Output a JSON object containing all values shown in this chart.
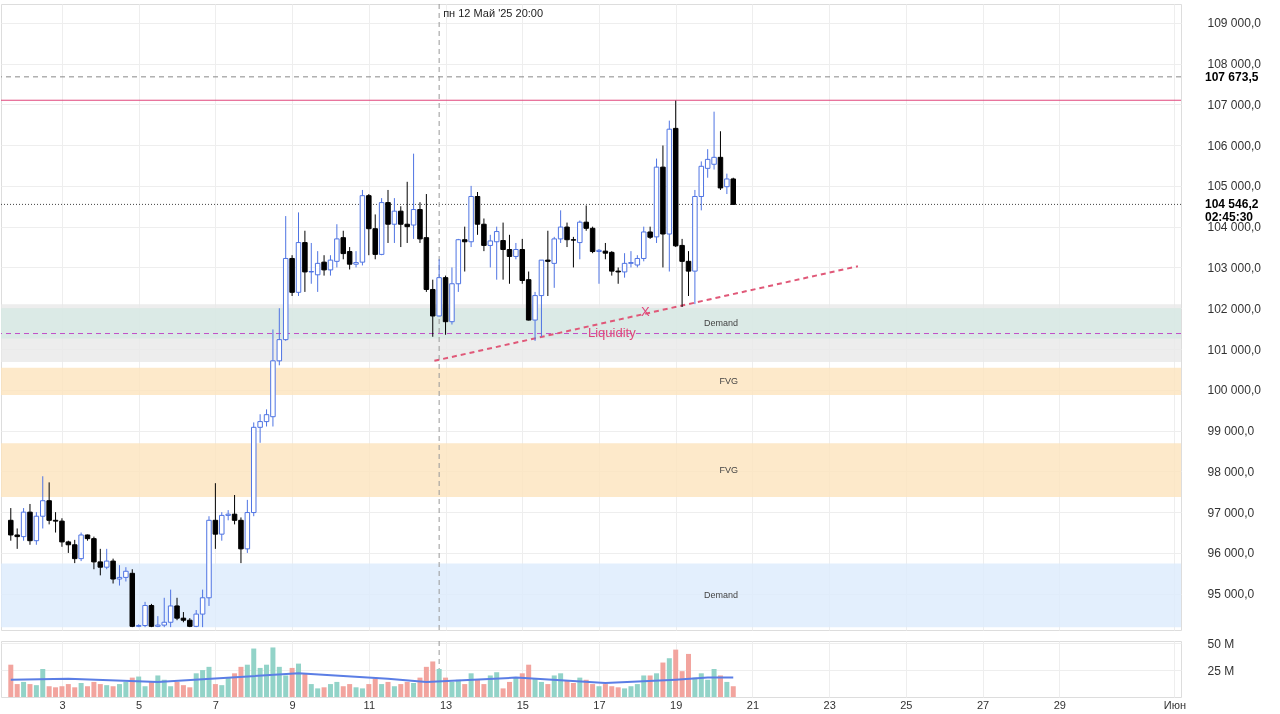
{
  "chart_data": [
    {
      "type": "candlestick",
      "tick_labels": "y",
      "grid": true,
      "colors": [
        "#000000",
        "#000000",
        "#4f74e3",
        "#000000",
        "#4f74e3",
        "#4f74e3",
        "#000000",
        "#000000",
        "#000000",
        "#000000",
        "#000000",
        "#4f74e3",
        "#000000",
        "#000000",
        "#000000",
        "#4f74e3",
        "#000000",
        "#4f74e3",
        "#4f74e3",
        "#000000",
        "#4f74e3",
        "#4f74e3",
        "#000000",
        "#4f74e3",
        "#4f74e3",
        "#4f74e3",
        "#000000",
        "#000000",
        "#000000",
        "#4f74e3",
        "#4f74e3",
        "#4f74e3",
        "#000000",
        "#4f74e3",
        "#4f74e3",
        "#000000",
        "#000000",
        "#4f74e3",
        "#4f74e3",
        "#4f74e3",
        "#4f74e3",
        "#4f74e3",
        "#4f74e3",
        "#4f74e3",
        "#000000",
        "#4f74e3",
        "#000000",
        "#4f74e3",
        "#4f74e3",
        "#000000",
        "#4f74e3",
        "#4f74e3",
        "#000000",
        "#000000",
        "#4f74e3",
        "#4f74e3",
        "#000000",
        "#000000",
        "#4f74e3",
        "#000000",
        "#4f74e3",
        "#000000",
        "#000000",
        "#4f74e3",
        "#000000",
        "#000000",
        "#000000",
        "#4f74e3",
        "#000000",
        "#4f74e3",
        "#4f74e3",
        "#000000",
        "#4f74e3",
        "#000000",
        "#000000",
        "#4f74e3",
        "#4f74e3",
        "#000000",
        "#000000",
        "#4f74e3",
        "#000000",
        "#000000",
        "#4f74e3",
        "#4f74e3",
        "#000000",
        "#4f74e3",
        "#4f74e3",
        "#000000",
        "#000000",
        "#4f74e3",
        "#000000",
        "#000000",
        "#4f74e3",
        "#000000",
        "#000000",
        "#000000",
        "#4f74e3",
        "#4f74e3",
        "#4f74e3",
        "#4f74e3",
        "#000000",
        "#4f74e3",
        "#000000",
        "#4f74e3",
        "#000000",
        "#000000",
        "#000000",
        "#4f74e3",
        "#4f74e3",
        "#4f74e3",
        "#4f74e3",
        "#000000",
        "#4f74e3",
        "#000000"
      ],
      "x": [
        "2025-05-01T16:00",
        "2025-05-01T20:00",
        "2025-05-02T00:00",
        "2025-05-02T04:00",
        "2025-05-02T08:00",
        "2025-05-02T12:00",
        "2025-05-02T16:00",
        "2025-05-02T20:00",
        "2025-05-03T00:00",
        "2025-05-03T04:00",
        "2025-05-03T08:00",
        "2025-05-03T12:00",
        "2025-05-03T16:00",
        "2025-05-03T20:00",
        "2025-05-04T00:00",
        "2025-05-04T04:00",
        "2025-05-04T08:00",
        "2025-05-04T12:00",
        "2025-05-04T16:00",
        "2025-05-04T20:00",
        "2025-05-05T00:00",
        "2025-05-05T04:00",
        "2025-05-05T08:00",
        "2025-05-05T12:00",
        "2025-05-05T16:00",
        "2025-05-05T20:00",
        "2025-05-06T00:00",
        "2025-05-06T04:00",
        "2025-05-06T08:00",
        "2025-05-06T12:00",
        "2025-05-06T16:00",
        "2025-05-06T20:00",
        "2025-05-07T00:00",
        "2025-05-07T04:00",
        "2025-05-07T08:00",
        "2025-05-07T12:00",
        "2025-05-07T16:00",
        "2025-05-07T20:00",
        "2025-05-08T00:00",
        "2025-05-08T04:00",
        "2025-05-08T08:00",
        "2025-05-08T12:00",
        "2025-05-08T16:00",
        "2025-05-08T20:00",
        "2025-05-09T00:00",
        "2025-05-09T04:00",
        "2025-05-09T08:00",
        "2025-05-09T12:00",
        "2025-05-09T16:00",
        "2025-05-09T20:00",
        "2025-05-10T00:00",
        "2025-05-10T04:00",
        "2025-05-10T08:00",
        "2025-05-10T12:00",
        "2025-05-10T16:00",
        "2025-05-10T20:00",
        "2025-05-11T00:00",
        "2025-05-11T04:00",
        "2025-05-11T08:00",
        "2025-05-11T12:00",
        "2025-05-11T16:00",
        "2025-05-11T20:00",
        "2025-05-12T00:00",
        "2025-05-12T04:00",
        "2025-05-12T08:00",
        "2025-05-12T12:00",
        "2025-05-12T16:00",
        "2025-05-12T20:00",
        "2025-05-13T00:00",
        "2025-05-13T04:00",
        "2025-05-13T08:00",
        "2025-05-13T12:00",
        "2025-05-13T16:00",
        "2025-05-13T20:00",
        "2025-05-14T00:00",
        "2025-05-14T04:00",
        "2025-05-14T08:00",
        "2025-05-14T12:00",
        "2025-05-14T16:00",
        "2025-05-14T20:00",
        "2025-05-15T00:00",
        "2025-05-15T04:00",
        "2025-05-15T08:00",
        "2025-05-15T12:00",
        "2025-05-15T16:00",
        "2025-05-15T20:00",
        "2025-05-16T00:00",
        "2025-05-16T04:00",
        "2025-05-16T08:00",
        "2025-05-16T12:00",
        "2025-05-16T16:00",
        "2025-05-16T20:00",
        "2025-05-17T00:00",
        "2025-05-17T04:00",
        "2025-05-17T08:00",
        "2025-05-17T12:00",
        "2025-05-17T16:00",
        "2025-05-17T20:00",
        "2025-05-18T00:00",
        "2025-05-18T04:00",
        "2025-05-18T08:00",
        "2025-05-18T12:00",
        "2025-05-18T16:00",
        "2025-05-18T20:00",
        "2025-05-19T00:00",
        "2025-05-19T04:00",
        "2025-05-19T08:00",
        "2025-05-19T12:00",
        "2025-05-19T16:00",
        "2025-05-19T20:00",
        "2025-05-20T00:00",
        "2025-05-20T04:00",
        "2025-05-20T08:00",
        "2025-05-20T12:00"
      ],
      "ohlc": [
        [
          96800,
          97100,
          96300,
          96440
        ],
        [
          96440,
          96600,
          96100,
          96400
        ],
        [
          96400,
          97100,
          96300,
          97000
        ],
        [
          97000,
          97200,
          96200,
          96300
        ],
        [
          96300,
          97000,
          96200,
          96900
        ],
        [
          96900,
          97880,
          96600,
          97280
        ],
        [
          97280,
          97730,
          96700,
          96800
        ],
        [
          96800,
          97000,
          96500,
          96780
        ],
        [
          96780,
          96850,
          96150,
          96270
        ],
        [
          96270,
          96300,
          96000,
          96200
        ],
        [
          96200,
          96320,
          95750,
          95860
        ],
        [
          95860,
          96500,
          95800,
          96440
        ],
        [
          96440,
          96450,
          96300,
          96350
        ],
        [
          96350,
          96400,
          95600,
          95780
        ],
        [
          95780,
          96100,
          95450,
          95650
        ],
        [
          95650,
          96100,
          95600,
          95800
        ],
        [
          95800,
          95860,
          95250,
          95360
        ],
        [
          95360,
          95700,
          95200,
          95400
        ],
        [
          95400,
          95650,
          95300,
          95550
        ],
        [
          95500,
          95600,
          94180,
          94200
        ],
        [
          94200,
          94250,
          94180,
          94220
        ],
        [
          94220,
          94800,
          94180,
          94710
        ],
        [
          94710,
          94750,
          94180,
          94200
        ],
        [
          94200,
          94450,
          94180,
          94230
        ],
        [
          94230,
          94900,
          94180,
          94300
        ],
        [
          94300,
          95100,
          94180,
          94700
        ],
        [
          94700,
          94900,
          94350,
          94400
        ],
        [
          94400,
          94550,
          94300,
          94350
        ],
        [
          94350,
          94400,
          94180,
          94200
        ],
        [
          94200,
          94600,
          94180,
          94500
        ],
        [
          94500,
          95100,
          94180,
          94900
        ],
        [
          94900,
          96900,
          94700,
          96800
        ],
        [
          96800,
          97710,
          96100,
          96460
        ],
        [
          96460,
          97000,
          96300,
          96920
        ],
        [
          96920,
          97050,
          96800,
          96950
        ],
        [
          96950,
          97420,
          96700,
          96800
        ],
        [
          96800,
          96870,
          95750,
          96100
        ],
        [
          96100,
          97300,
          96000,
          96990
        ],
        [
          96990,
          99200,
          96900,
          99080
        ],
        [
          99080,
          99400,
          98700,
          99220
        ],
        [
          99220,
          99520,
          99100,
          99390
        ],
        [
          99340,
          101480,
          99100,
          100710
        ],
        [
          100710,
          102000,
          100600,
          101230
        ],
        [
          101230,
          104260,
          101200,
          103220
        ],
        [
          103220,
          103300,
          102300,
          102390
        ],
        [
          102390,
          104350,
          102300,
          103610
        ],
        [
          103610,
          103900,
          102400,
          102890
        ],
        [
          102890,
          103600,
          102600,
          102900
        ],
        [
          102820,
          103400,
          102400,
          103100
        ],
        [
          103130,
          103300,
          102800,
          102940
        ],
        [
          102940,
          103300,
          102800,
          103180
        ],
        [
          103150,
          104060,
          103000,
          103700
        ],
        [
          103730,
          103900,
          103200,
          103340
        ],
        [
          103390,
          103500,
          102950,
          103080
        ],
        [
          103080,
          103400,
          103000,
          103120
        ],
        [
          103130,
          104900,
          103050,
          104760
        ],
        [
          104760,
          104800,
          103300,
          103950
        ],
        [
          103950,
          104300,
          103200,
          103320
        ],
        [
          103320,
          104700,
          103300,
          104590
        ],
        [
          104590,
          104900,
          103600,
          104060
        ],
        [
          104060,
          104700,
          103600,
          104380
        ],
        [
          104380,
          104500,
          103500,
          104060
        ],
        [
          104060,
          105100,
          103600,
          104000
        ],
        [
          104040,
          105790,
          103700,
          104420
        ],
        [
          104420,
          104600,
          103600,
          103700
        ],
        [
          103730,
          104800,
          102400,
          102460
        ],
        [
          102460,
          102700,
          101300,
          101810
        ],
        [
          101810,
          103200,
          101800,
          102750
        ],
        [
          102750,
          102800,
          101350,
          101670
        ],
        [
          101670,
          103000,
          101600,
          102600
        ],
        [
          102600,
          103700,
          102400,
          103680
        ],
        [
          103680,
          104000,
          102900,
          103630
        ],
        [
          103630,
          105000,
          103500,
          104740
        ],
        [
          104740,
          104850,
          103800,
          104060
        ],
        [
          104060,
          104200,
          103400,
          103540
        ],
        [
          103540,
          103800,
          103000,
          103650
        ],
        [
          103630,
          104000,
          102700,
          103880
        ],
        [
          103660,
          104100,
          102700,
          103440
        ],
        [
          103440,
          103800,
          102600,
          103270
        ],
        [
          103270,
          103600,
          103200,
          103440
        ],
        [
          103440,
          103700,
          102600,
          102680
        ],
        [
          102700,
          102900,
          101700,
          101710
        ],
        [
          101710,
          102400,
          101200,
          102310
        ],
        [
          102310,
          103180,
          101300,
          103180
        ],
        [
          103180,
          103900,
          102300,
          103150
        ],
        [
          103100,
          103750,
          102500,
          103700
        ],
        [
          103700,
          104400,
          103600,
          103990
        ],
        [
          103990,
          104100,
          103500,
          103680
        ],
        [
          103680,
          103750,
          103000,
          103670
        ],
        [
          103610,
          104150,
          103200,
          104110
        ],
        [
          104110,
          104520,
          103900,
          103960
        ],
        [
          103960,
          104000,
          103350,
          103390
        ],
        [
          103390,
          103450,
          102600,
          103420
        ],
        [
          103400,
          103600,
          103200,
          103350
        ],
        [
          103370,
          103400,
          102800,
          102910
        ],
        [
          102910,
          103000,
          102600,
          102890
        ],
        [
          102890,
          103350,
          102750,
          103100
        ],
        [
          103100,
          103400,
          103000,
          103120
        ],
        [
          103060,
          103300,
          103000,
          103220
        ],
        [
          103220,
          104000,
          103150,
          103870
        ],
        [
          103870,
          104000,
          103700,
          103740
        ],
        [
          103750,
          105670,
          103600,
          105460
        ],
        [
          105460,
          105990,
          103000,
          103820
        ],
        [
          103820,
          106600,
          102900,
          106390
        ],
        [
          106410,
          107090,
          103500,
          103530
        ],
        [
          103540,
          103700,
          102030,
          103150
        ],
        [
          103150,
          103400,
          102300,
          102910
        ],
        [
          102910,
          104900,
          102100,
          104740
        ],
        [
          104740,
          105600,
          104400,
          105480
        ],
        [
          105430,
          105900,
          105200,
          105650
        ],
        [
          105530,
          106820,
          105400,
          105700
        ],
        [
          105700,
          106340,
          104900,
          104950
        ],
        [
          104980,
          105300,
          104800,
          105170
        ],
        [
          105170,
          105200,
          104546.2,
          104546.2
        ]
      ],
      "series": [
        {
          "type": "line",
          "line_style": "dashed",
          "color": "#e05878",
          "x": [
            "2025-05-12T17:00",
            "2025-05-23T18:00"
          ],
          "values": [
            100710,
            103030
          ]
        }
      ],
      "xlim": [
        "2025-05-01T13:00",
        "2025-06-01T01:00"
      ],
      "xticks": [
        {
          "value": "2025-05-03",
          "label": null
        },
        {
          "value": "2025-05-05",
          "label": null
        },
        {
          "value": "2025-05-07",
          "label": null
        },
        {
          "value": "2025-05-09",
          "label": null
        },
        {
          "value": "2025-05-11",
          "label": null
        },
        {
          "value": "2025-05-13",
          "label": null
        },
        {
          "value": "2025-05-15",
          "label": null
        },
        {
          "value": "2025-05-17",
          "label": null
        },
        {
          "value": "2025-05-19",
          "label": null
        },
        {
          "value": "2025-05-21",
          "label": null
        },
        {
          "value": "2025-05-23",
          "label": null
        },
        {
          "value": "2025-05-25",
          "label": null
        },
        {
          "value": "2025-05-27",
          "label": null
        },
        {
          "value": "2025-05-29",
          "label": null
        },
        {
          "value": "2025-06-01",
          "label": null
        }
      ],
      "ylim": [
        94110,
        109460
      ],
      "yticks": [
        {
          "value": 95000,
          "label": "95 000,0"
        },
        {
          "value": 96000,
          "label": "96 000,0"
        },
        {
          "value": 97000,
          "label": "97 000,0"
        },
        {
          "value": 98000,
          "label": "98 000,0"
        },
        {
          "value": 99000,
          "label": "99 000,0"
        },
        {
          "value": 100000,
          "label": "100 000,0"
        },
        {
          "value": 101000,
          "label": "101 000,0"
        },
        {
          "value": 102000,
          "label": "102 000,0"
        },
        {
          "value": 103000,
          "label": "103 000,0"
        },
        {
          "value": 104000,
          "label": "104 000,0"
        },
        {
          "value": 105000,
          "label": "105 000,0"
        },
        {
          "value": 106000,
          "label": "106 000,0"
        },
        {
          "value": 107000,
          "label": "107 000,0"
        },
        {
          "value": 108000,
          "label": "108 000,0"
        },
        {
          "value": 109000,
          "label": "109 000,0"
        }
      ],
      "bands": [
        {
          "axis": "y",
          "from": 94180,
          "to": 95740,
          "label": "Demand",
          "color": "#dcebfc"
        },
        {
          "axis": "y",
          "from": 97370,
          "to": 98690,
          "label": "FVG",
          "color": "#fde3bd"
        },
        {
          "axis": "y",
          "from": 99870,
          "to": 100540,
          "label": "FVG",
          "color": "#fde3bd"
        },
        {
          "axis": "y",
          "from": 100680,
          "to": 102100,
          "label": null,
          "color": "#e8e8e8"
        },
        {
          "axis": "y",
          "from": 101260,
          "to": 102000,
          "label": "Demand",
          "color": "#d6e9e3"
        }
      ],
      "ref_lines": [
        {
          "axis": "y",
          "value": 107673.5,
          "label": "107 673,5",
          "color": "#888888",
          "line_style": "dashed"
        },
        {
          "axis": "y",
          "value": 107100,
          "label": null,
          "color": "#e0457a",
          "line_style": "solid"
        },
        {
          "axis": "y",
          "value": 104546.2,
          "label": "104 546,2",
          "color": "#444444",
          "line_style": "dotted"
        },
        {
          "axis": "y",
          "value": 101380,
          "label": null,
          "color": "#c050c8",
          "line_style": "dashed"
        },
        {
          "axis": "x",
          "value": "2025-05-12T20:00",
          "label": "пн 12 Май '25  20:00",
          "color": "#999999",
          "line_style": "dashed"
        }
      ],
      "annotations": [
        {
          "text": "X",
          "x": "2025-05-18T05:00",
          "y": 101880
        },
        {
          "text": "Liquidity",
          "x": "2025-05-17T08:00",
          "y": 101380
        },
        "02:45:30"
      ]
    },
    {
      "type": "bar",
      "grid": true,
      "x": [
        "2025-05-01T16:00",
        "2025-05-01T20:00",
        "2025-05-02T00:00",
        "2025-05-02T04:00",
        "2025-05-02T08:00",
        "2025-05-02T12:00",
        "2025-05-02T16:00",
        "2025-05-02T20:00",
        "2025-05-03T00:00",
        "2025-05-03T04:00",
        "2025-05-03T08:00",
        "2025-05-03T12:00",
        "2025-05-03T16:00",
        "2025-05-03T20:00",
        "2025-05-04T00:00",
        "2025-05-04T04:00",
        "2025-05-04T08:00",
        "2025-05-04T12:00",
        "2025-05-04T16:00",
        "2025-05-04T20:00",
        "2025-05-05T00:00",
        "2025-05-05T04:00",
        "2025-05-05T08:00",
        "2025-05-05T12:00",
        "2025-05-05T16:00",
        "2025-05-05T20:00",
        "2025-05-06T00:00",
        "2025-05-06T04:00",
        "2025-05-06T08:00",
        "2025-05-06T12:00",
        "2025-05-06T16:00",
        "2025-05-06T20:00",
        "2025-05-07T00:00",
        "2025-05-07T04:00",
        "2025-05-07T08:00",
        "2025-05-07T12:00",
        "2025-05-07T16:00",
        "2025-05-07T20:00",
        "2025-05-08T00:00",
        "2025-05-08T04:00",
        "2025-05-08T08:00",
        "2025-05-08T12:00",
        "2025-05-08T16:00",
        "2025-05-08T20:00",
        "2025-05-09T00:00",
        "2025-05-09T04:00",
        "2025-05-09T08:00",
        "2025-05-09T12:00",
        "2025-05-09T16:00",
        "2025-05-09T20:00",
        "2025-05-10T00:00",
        "2025-05-10T04:00",
        "2025-05-10T08:00",
        "2025-05-10T12:00",
        "2025-05-10T16:00",
        "2025-05-10T20:00",
        "2025-05-11T00:00",
        "2025-05-11T04:00",
        "2025-05-11T08:00",
        "2025-05-11T12:00",
        "2025-05-11T16:00",
        "2025-05-11T20:00",
        "2025-05-12T00:00",
        "2025-05-12T04:00",
        "2025-05-12T08:00",
        "2025-05-12T12:00",
        "2025-05-12T16:00",
        "2025-05-12T20:00",
        "2025-05-13T00:00",
        "2025-05-13T04:00",
        "2025-05-13T08:00",
        "2025-05-13T12:00",
        "2025-05-13T16:00",
        "2025-05-13T20:00",
        "2025-05-14T00:00",
        "2025-05-14T04:00",
        "2025-05-14T08:00",
        "2025-05-14T12:00",
        "2025-05-14T16:00",
        "2025-05-14T20:00",
        "2025-05-15T00:00",
        "2025-05-15T04:00",
        "2025-05-15T08:00",
        "2025-05-15T12:00",
        "2025-05-15T16:00",
        "2025-05-15T20:00",
        "2025-05-16T00:00",
        "2025-05-16T04:00",
        "2025-05-16T08:00",
        "2025-05-16T12:00",
        "2025-05-16T16:00",
        "2025-05-16T20:00",
        "2025-05-17T00:00",
        "2025-05-17T04:00",
        "2025-05-17T08:00",
        "2025-05-17T12:00",
        "2025-05-17T16:00",
        "2025-05-17T20:00",
        "2025-05-18T00:00",
        "2025-05-18T04:00",
        "2025-05-18T08:00",
        "2025-05-18T12:00",
        "2025-05-18T16:00",
        "2025-05-18T20:00",
        "2025-05-19T00:00",
        "2025-05-19T04:00",
        "2025-05-19T08:00",
        "2025-05-19T12:00",
        "2025-05-19T16:00",
        "2025-05-19T20:00",
        "2025-05-20T00:00",
        "2025-05-20T04:00",
        "2025-05-20T08:00",
        "2025-05-20T12:00"
      ],
      "values": [
        30,
        12,
        14,
        12,
        11,
        26,
        10,
        9,
        10,
        12,
        9,
        13,
        10,
        14,
        12,
        11,
        10,
        12,
        14,
        18,
        19,
        10,
        14,
        20,
        16,
        10,
        14,
        11,
        9,
        22,
        25,
        28,
        12,
        11,
        18,
        22,
        28,
        30,
        45,
        27,
        30,
        46,
        28,
        20,
        27,
        31,
        22,
        12,
        8,
        9,
        12,
        14,
        10,
        12,
        9,
        8,
        12,
        17,
        12,
        14,
        10,
        12,
        14,
        13,
        18,
        28,
        33,
        26,
        18,
        14,
        16,
        12,
        22,
        16,
        12,
        20,
        23,
        8,
        14,
        18,
        22,
        30,
        17,
        14,
        12,
        20,
        22,
        15,
        13,
        18,
        16,
        12,
        10,
        12,
        10,
        9,
        8,
        10,
        12,
        20,
        20,
        22,
        32,
        36,
        44,
        24,
        40,
        18,
        22,
        16,
        26,
        20,
        14,
        10
      ],
      "colors": [
        "#f2a49e",
        "#f2a49e",
        "#92d3c8",
        "#f2a49e",
        "#92d3c8",
        "#92d3c8",
        "#f2a49e",
        "#f2a49e",
        "#f2a49e",
        "#f2a49e",
        "#f2a49e",
        "#92d3c8",
        "#f2a49e",
        "#f2a49e",
        "#f2a49e",
        "#92d3c8",
        "#f2a49e",
        "#92d3c8",
        "#92d3c8",
        "#f2a49e",
        "#92d3c8",
        "#92d3c8",
        "#f2a49e",
        "#92d3c8",
        "#92d3c8",
        "#92d3c8",
        "#f2a49e",
        "#f2a49e",
        "#f2a49e",
        "#92d3c8",
        "#92d3c8",
        "#92d3c8",
        "#f2a49e",
        "#92d3c8",
        "#92d3c8",
        "#f2a49e",
        "#f2a49e",
        "#92d3c8",
        "#92d3c8",
        "#92d3c8",
        "#92d3c8",
        "#92d3c8",
        "#92d3c8",
        "#92d3c8",
        "#f2a49e",
        "#92d3c8",
        "#f2a49e",
        "#92d3c8",
        "#92d3c8",
        "#f2a49e",
        "#92d3c8",
        "#92d3c8",
        "#f2a49e",
        "#f2a49e",
        "#92d3c8",
        "#92d3c8",
        "#f2a49e",
        "#f2a49e",
        "#92d3c8",
        "#f2a49e",
        "#92d3c8",
        "#f2a49e",
        "#f2a49e",
        "#92d3c8",
        "#f2a49e",
        "#f2a49e",
        "#f2a49e",
        "#92d3c8",
        "#f2a49e",
        "#92d3c8",
        "#92d3c8",
        "#f2a49e",
        "#92d3c8",
        "#f2a49e",
        "#f2a49e",
        "#92d3c8",
        "#92d3c8",
        "#f2a49e",
        "#f2a49e",
        "#92d3c8",
        "#f2a49e",
        "#f2a49e",
        "#92d3c8",
        "#92d3c8",
        "#f2a49e",
        "#92d3c8",
        "#92d3c8",
        "#f2a49e",
        "#f2a49e",
        "#92d3c8",
        "#f2a49e",
        "#f2a49e",
        "#92d3c8",
        "#f2a49e",
        "#f2a49e",
        "#f2a49e",
        "#92d3c8",
        "#92d3c8",
        "#92d3c8",
        "#92d3c8",
        "#f2a49e",
        "#92d3c8",
        "#f2a49e",
        "#92d3c8",
        "#f2a49e",
        "#f2a49e",
        "#f2a49e",
        "#92d3c8",
        "#92d3c8",
        "#92d3c8",
        "#92d3c8",
        "#f2a49e",
        "#92d3c8",
        "#f2a49e"
      ],
      "series": [
        {
          "type": "line",
          "color": "#5b7ee5",
          "x": [
            "2025-05-01T16:00",
            "2025-05-03T04:00",
            "2025-05-05T12:00",
            "2025-05-09T04:00",
            "2025-05-11T12:00",
            "2025-05-12T12:00",
            "2025-05-14T20:00",
            "2025-05-17T04:00",
            "2025-05-19T00:00",
            "2025-05-19T20:00",
            "2025-05-20T12:00"
          ],
          "values": [
            16,
            17,
            14,
            22,
            17,
            14,
            18,
            13,
            16,
            18,
            18
          ]
        }
      ],
      "xlim": [
        "2025-05-01T13:00",
        "2025-06-01T01:00"
      ],
      "xticks": [
        {
          "value": "2025-05-03",
          "label": "3"
        },
        {
          "value": "2025-05-05",
          "label": "5"
        },
        {
          "value": "2025-05-07",
          "label": "7"
        },
        {
          "value": "2025-05-09",
          "label": "9"
        },
        {
          "value": "2025-05-11",
          "label": "11"
        },
        {
          "value": "2025-05-13",
          "label": "13"
        },
        {
          "value": "2025-05-15",
          "label": "15"
        },
        {
          "value": "2025-05-17",
          "label": "17"
        },
        {
          "value": "2025-05-19",
          "label": "19"
        },
        {
          "value": "2025-05-21",
          "label": "21"
        },
        {
          "value": "2025-05-23",
          "label": "23"
        },
        {
          "value": "2025-05-25",
          "label": "25"
        },
        {
          "value": "2025-05-27",
          "label": "27"
        },
        {
          "value": "2025-05-29",
          "label": "29"
        },
        {
          "value": "2025-06-01",
          "label": "Июн"
        }
      ],
      "ylim": [
        0,
        52
      ],
      "yticks": [
        {
          "value": 25,
          "label": "25 M"
        },
        {
          "value": 50,
          "label": "50 M"
        }
      ],
      "ref_lines": [
        {
          "axis": "x",
          "value": "2025-05-12T20:00",
          "label": null,
          "color": "#999999",
          "line_style": "dashed"
        }
      ]
    }
  ]
}
